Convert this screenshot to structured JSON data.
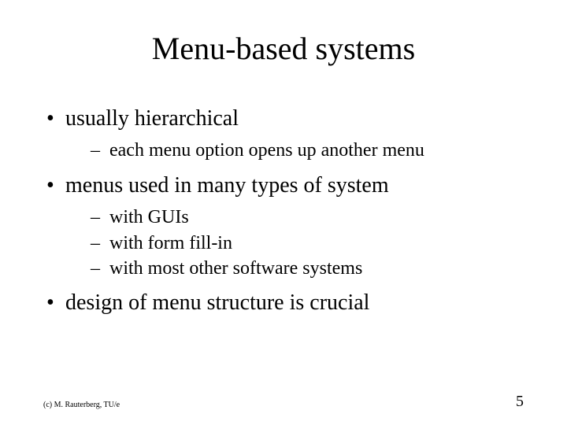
{
  "slide": {
    "title": "Menu-based systems",
    "bullets": [
      {
        "text": "usually hierarchical",
        "subitems": [
          "each menu option opens up another menu"
        ]
      },
      {
        "text": "menus used in many types of system",
        "subitems": [
          "with GUIs",
          "with form fill-in",
          "with most other software systems"
        ]
      },
      {
        "text": "design of menu structure is crucial",
        "subitems": []
      }
    ],
    "footer_left": "(c) M. Rauterberg, TU/e",
    "page_number": "5"
  },
  "style": {
    "background_color": "#ffffff",
    "text_color": "#000000",
    "title_fontsize": 40,
    "bullet_fontsize": 28,
    "subbullet_fontsize": 24,
    "footer_fontsize": 10,
    "pagenum_fontsize": 20,
    "font_family": "Times New Roman"
  }
}
